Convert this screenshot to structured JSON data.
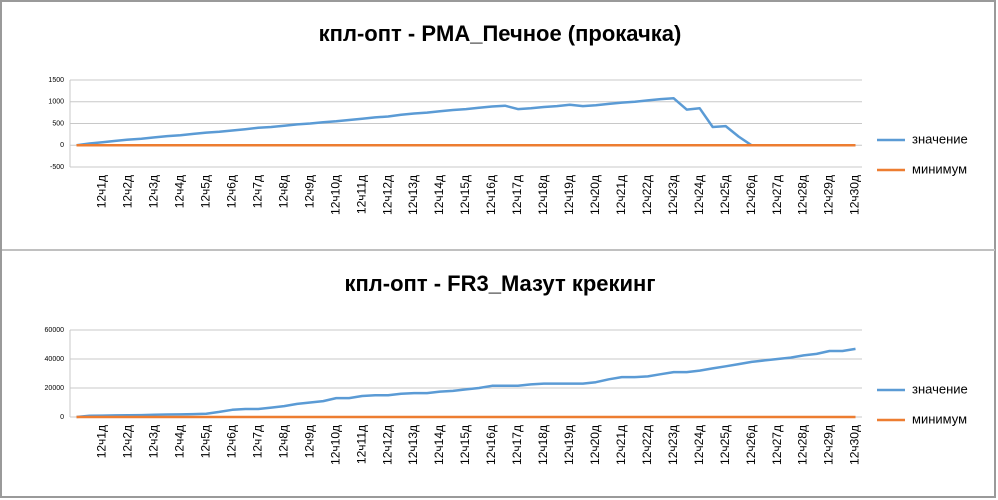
{
  "chart_data": [
    {
      "type": "line",
      "title": "кпл-опт - PMA_Печное (прокачка)",
      "categories": [
        null,
        null,
        "12ч1д",
        null,
        "12ч2д",
        null,
        "12ч3д",
        null,
        "12ч4д",
        null,
        "12ч5д",
        null,
        "12ч6д",
        null,
        "12ч7д",
        null,
        "12ч8д",
        null,
        "12ч9д",
        null,
        "12ч10д",
        null,
        "12ч11д",
        null,
        "12ч12д",
        null,
        "12ч13д",
        null,
        "12ч14д",
        null,
        "12ч15д",
        null,
        "12ч16д",
        null,
        "12ч17д",
        null,
        "12ч18д",
        null,
        "12ч19д",
        null,
        "12ч20д",
        null,
        "12ч21д",
        null,
        "12ч22д",
        null,
        "12ч23д",
        null,
        "12ч24д",
        null,
        "12ч25д",
        null,
        "12ч26д",
        null,
        "12ч27д",
        null,
        "12ч28д",
        null,
        "12ч29д",
        null,
        "12ч30д"
      ],
      "series": [
        {
          "name": "значение",
          "color": "#5b9bd5",
          "values": [
            0,
            40,
            70,
            100,
            130,
            150,
            180,
            210,
            230,
            260,
            290,
            310,
            340,
            370,
            400,
            420,
            450,
            480,
            500,
            530,
            550,
            580,
            610,
            640,
            660,
            700,
            730,
            750,
            780,
            810,
            830,
            860,
            890,
            910,
            830,
            850,
            880,
            900,
            930,
            900,
            920,
            950,
            980,
            1000,
            1030,
            1060,
            1080,
            820,
            850,
            420,
            440,
            200,
            0,
            null,
            null,
            null,
            null,
            null,
            null,
            null,
            null
          ]
        },
        {
          "name": "минимум",
          "color": "#ed7d31",
          "values": [
            0,
            0,
            0,
            0,
            0,
            0,
            0,
            0,
            0,
            0,
            0,
            0,
            0,
            0,
            0,
            0,
            0,
            0,
            0,
            0,
            0,
            0,
            0,
            0,
            0,
            0,
            0,
            0,
            0,
            0,
            0,
            0,
            0,
            0,
            0,
            0,
            0,
            0,
            0,
            0,
            0,
            0,
            0,
            0,
            0,
            0,
            0,
            0,
            0,
            0,
            0,
            0,
            0,
            0,
            0,
            0,
            0,
            0,
            0,
            0,
            0
          ]
        }
      ],
      "ylim": [
        -500,
        1500
      ],
      "yticks": [
        -500,
        0,
        500,
        1000,
        1500
      ],
      "grid": true,
      "legend": "right"
    },
    {
      "type": "line",
      "title": "кпл-опт - FR3_Мазут крекинг",
      "categories": [
        null,
        null,
        "12ч1д",
        null,
        "12ч2д",
        null,
        "12ч3д",
        null,
        "12ч4д",
        null,
        "12ч5д",
        null,
        "12ч6д",
        null,
        "12ч7д",
        null,
        "12ч8д",
        null,
        "12ч9д",
        null,
        "12ч10д",
        null,
        "12ч11д",
        null,
        "12ч12д",
        null,
        "12ч13д",
        null,
        "12ч14д",
        null,
        "12ч15д",
        null,
        "12ч16д",
        null,
        "12ч17д",
        null,
        "12ч18д",
        null,
        "12ч19д",
        null,
        "12ч20д",
        null,
        "12ч21д",
        null,
        "12ч22д",
        null,
        "12ч23д",
        null,
        "12ч24д",
        null,
        "12ч25д",
        null,
        "12ч26д",
        null,
        "12ч27д",
        null,
        "12ч28д",
        null,
        "12ч29д",
        null,
        "12ч30д"
      ],
      "series": [
        {
          "name": "значение",
          "color": "#5b9bd5",
          "values": [
            0,
            800,
            1000,
            1100,
            1200,
            1300,
            1500,
            1700,
            1800,
            2000,
            2300,
            3500,
            5000,
            5500,
            5500,
            6500,
            7500,
            9000,
            10000,
            11000,
            13000,
            13000,
            14500,
            15000,
            15000,
            16000,
            16500,
            16500,
            17500,
            18000,
            19000,
            20000,
            21500,
            21500,
            21500,
            22500,
            23000,
            23000,
            23000,
            23000,
            24000,
            26000,
            27500,
            27500,
            28000,
            29500,
            31000,
            31000,
            32000,
            33500,
            35000,
            36500,
            38000,
            39000,
            40000,
            41000,
            42500,
            43500,
            45500,
            45500,
            47000
          ]
        },
        {
          "name": "минимум",
          "color": "#ed7d31",
          "values": [
            0,
            0,
            0,
            0,
            0,
            0,
            0,
            0,
            0,
            0,
            0,
            0,
            0,
            0,
            0,
            0,
            0,
            0,
            0,
            0,
            0,
            0,
            0,
            0,
            0,
            0,
            0,
            0,
            0,
            0,
            0,
            0,
            0,
            0,
            0,
            0,
            0,
            0,
            0,
            0,
            0,
            0,
            0,
            0,
            0,
            0,
            0,
            0,
            0,
            0,
            0,
            0,
            0,
            0,
            0,
            0,
            0,
            0,
            0,
            0,
            0
          ]
        }
      ],
      "ylim": [
        0,
        60000
      ],
      "yticks": [
        0,
        20000,
        40000,
        60000
      ],
      "grid": true,
      "legend": "right"
    }
  ]
}
